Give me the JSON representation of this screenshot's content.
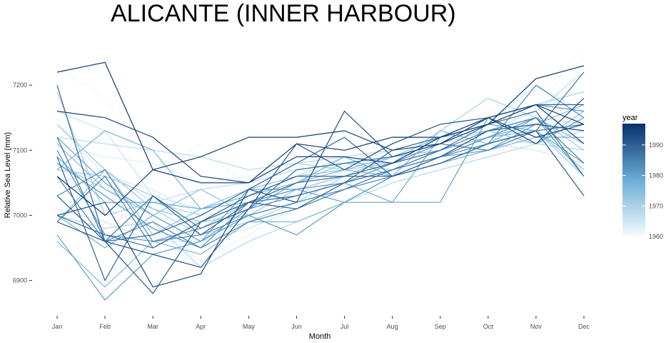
{
  "chart_data": {
    "type": "line",
    "title": "ALICANTE (INNER HARBOUR)",
    "xlabel": "Month",
    "ylabel": "Relative Sea Level (mm)",
    "categories": [
      "Jan",
      "Feb",
      "Mar",
      "Apr",
      "May",
      "Jun",
      "Jul",
      "Aug",
      "Sep",
      "Oct",
      "Nov",
      "Dec"
    ],
    "ylim": [
      6850,
      7265
    ],
    "yticks": [
      6900,
      7000,
      7100,
      7200
    ],
    "grid": false,
    "legend": {
      "title": "year",
      "position": "right",
      "ticks": [
        1960,
        1970,
        1980,
        1990
      ],
      "range": [
        1960,
        1997
      ],
      "low_color": "#f7fbff",
      "high_color": "#08306b"
    },
    "series": [
      {
        "year": 1960,
        "values": [
          7090,
          7030,
          7000,
          6960,
          6980,
          7030,
          7050,
          7080,
          7120,
          7150,
          7160,
          7265
        ]
      },
      {
        "year": 1961,
        "values": [
          7230,
          7180,
          7060,
          7110,
          7040,
          7060,
          7080,
          7110,
          7130,
          7160,
          7190,
          7240
        ]
      },
      {
        "year": 1962,
        "values": [
          7060,
          7010,
          6980,
          6930,
          6970,
          7010,
          7040,
          7060,
          7100,
          7120,
          7140,
          7130
        ]
      },
      {
        "year": 1963,
        "values": [
          7110,
          7090,
          7080,
          7050,
          7060,
          7070,
          7080,
          7100,
          7110,
          7130,
          7150,
          7230
        ]
      },
      {
        "year": 1964,
        "values": [
          7140,
          7060,
          7040,
          7000,
          7010,
          7030,
          7070,
          7090,
          7110,
          7140,
          7200,
          7160
        ]
      },
      {
        "year": 1965,
        "values": [
          7010,
          6990,
          6960,
          6960,
          6980,
          7010,
          7040,
          7070,
          7090,
          7110,
          7100,
          7080
        ]
      },
      {
        "year": 1966,
        "values": [
          7160,
          7130,
          7030,
          7010,
          7030,
          7060,
          7090,
          7100,
          7110,
          7130,
          7160,
          7220
        ]
      },
      {
        "year": 1967,
        "values": [
          7050,
          7070,
          7020,
          7040,
          7050,
          7070,
          7080,
          7080,
          7100,
          7120,
          7110,
          7130
        ]
      },
      {
        "year": 1968,
        "values": [
          7120,
          7110,
          7100,
          7090,
          7070,
          7080,
          7090,
          7100,
          7110,
          7130,
          7150,
          7140
        ]
      },
      {
        "year": 1969,
        "values": [
          7000,
          6980,
          6990,
          6920,
          6960,
          6990,
          7020,
          7050,
          7070,
          7090,
          7110,
          7100
        ]
      },
      {
        "year": 1970,
        "values": [
          7080,
          7040,
          7010,
          6970,
          6990,
          7020,
          7060,
          7080,
          7110,
          7140,
          7170,
          7190
        ]
      },
      {
        "year": 1971,
        "values": [
          7190,
          7000,
          7020,
          7000,
          7040,
          7080,
          7070,
          7080,
          7130,
          7180,
          7150,
          7100
        ]
      },
      {
        "year": 1972,
        "values": [
          7070,
          7060,
          7030,
          6980,
          7020,
          7050,
          7080,
          7070,
          7100,
          7120,
          7130,
          7060
        ]
      },
      {
        "year": 1973,
        "values": [
          7140,
          7070,
          7010,
          6990,
          7000,
          7040,
          7060,
          7090,
          7120,
          7130,
          7110,
          7160
        ]
      },
      {
        "year": 1974,
        "values": [
          6990,
          7070,
          6970,
          7010,
          7040,
          7060,
          7070,
          7090,
          7100,
          7120,
          7130,
          7070
        ]
      },
      {
        "year": 1975,
        "values": [
          7110,
          7040,
          7000,
          7040,
          7000,
          7020,
          7040,
          7070,
          7090,
          7120,
          7140,
          7170
        ]
      },
      {
        "year": 1976,
        "values": [
          6960,
          6890,
          6960,
          6940,
          6990,
          6990,
          7020,
          7060,
          7130,
          7110,
          7150,
          7110
        ]
      },
      {
        "year": 1977,
        "values": [
          7070,
          7130,
          7100,
          7010,
          7030,
          7050,
          7070,
          7060,
          7080,
          7100,
          7120,
          7120
        ]
      },
      {
        "year": 1978,
        "values": [
          7000,
          6950,
          7000,
          6960,
          7010,
          7050,
          7090,
          7060,
          7080,
          7110,
          7130,
          7030
        ]
      },
      {
        "year": 1979,
        "values": [
          7090,
          7020,
          7020,
          7010,
          7020,
          7030,
          7050,
          7020,
          7120,
          7140,
          7130,
          7080
        ]
      },
      {
        "year": 1980,
        "values": [
          7120,
          7050,
          7000,
          6960,
          7040,
          7040,
          7020,
          7020,
          7020,
          7150,
          7110,
          7150
        ]
      },
      {
        "year": 1981,
        "values": [
          6970,
          6870,
          6940,
          6960,
          7000,
          6970,
          7020,
          7060,
          7090,
          7100,
          7140,
          7130
        ]
      },
      {
        "year": 1982,
        "values": [
          7080,
          7030,
          6980,
          6950,
          7020,
          7040,
          7050,
          7080,
          7110,
          7150,
          7170,
          7160
        ]
      },
      {
        "year": 1983,
        "values": [
          7100,
          6970,
          6960,
          6980,
          7010,
          7030,
          7050,
          7070,
          7090,
          7120,
          7150,
          7060
        ]
      },
      {
        "year": 1984,
        "values": [
          7030,
          7070,
          6960,
          6970,
          7000,
          7020,
          7040,
          7060,
          7080,
          7110,
          7200,
          7150
        ]
      },
      {
        "year": 1985,
        "values": [
          7060,
          6960,
          6990,
          6950,
          6990,
          7010,
          7040,
          7070,
          7090,
          7110,
          7130,
          7140
        ]
      },
      {
        "year": 1986,
        "values": [
          6990,
          7060,
          6950,
          6990,
          7020,
          7030,
          7050,
          7070,
          7100,
          7130,
          7150,
          7080
        ]
      },
      {
        "year": 1987,
        "values": [
          7120,
          6960,
          7030,
          6980,
          7010,
          7070,
          7080,
          7090,
          7110,
          7100,
          7130,
          7220
        ]
      },
      {
        "year": 1988,
        "values": [
          7000,
          6970,
          6950,
          6990,
          7020,
          7050,
          7060,
          7080,
          7100,
          7140,
          7160,
          7060
        ]
      },
      {
        "year": 1989,
        "values": [
          7200,
          6960,
          6970,
          7000,
          7040,
          7080,
          7120,
          7060,
          7080,
          7110,
          7130,
          7030
        ]
      },
      {
        "year": 1990,
        "values": [
          7090,
          6900,
          7030,
          6970,
          7020,
          7010,
          7050,
          7100,
          7120,
          7150,
          7170,
          7170
        ]
      },
      {
        "year": 1991,
        "values": [
          7030,
          6960,
          6880,
          6990,
          7030,
          7060,
          7060,
          7060,
          7090,
          7130,
          7140,
          7130
        ]
      },
      {
        "year": 1992,
        "values": [
          6990,
          6960,
          6940,
          6920,
          7010,
          7110,
          7070,
          7110,
          7140,
          7150,
          7110,
          7180
        ]
      },
      {
        "year": 1993,
        "values": [
          7000,
          7020,
          6890,
          6910,
          7040,
          7020,
          7160,
          7090,
          7110,
          7150,
          7120,
          7140
        ]
      },
      {
        "year": 1994,
        "values": [
          7160,
          7150,
          7120,
          7060,
          7050,
          7090,
          7090,
          7080,
          7120,
          7150,
          7170,
          7110
        ]
      },
      {
        "year": 1995,
        "values": [
          7060,
          7000,
          7070,
          7090,
          7120,
          7120,
          7130,
          7100,
          7110,
          7140,
          7170,
          7140
        ]
      },
      {
        "year": 1996,
        "values": [
          7220,
          7235,
          7070,
          7050,
          7050,
          7110,
          7100,
          7120,
          7120,
          7140,
          7210,
          7230
        ]
      }
    ]
  }
}
